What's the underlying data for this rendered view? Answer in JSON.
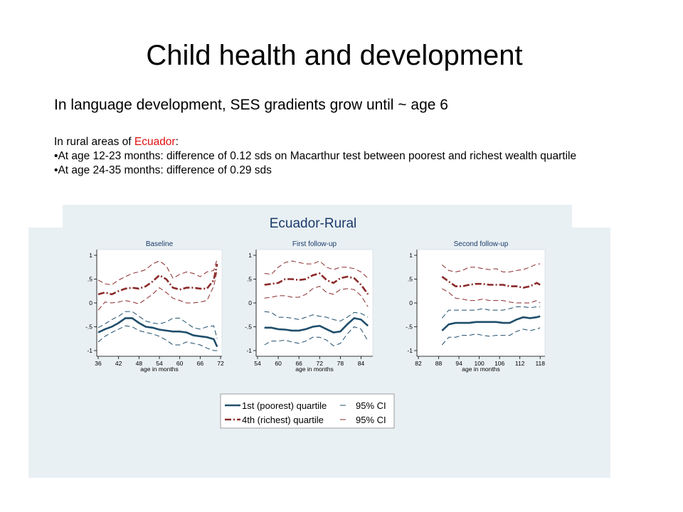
{
  "slide": {
    "title": "Child health and development",
    "subtitle": "In language development, SES gradients grow until ~ age 6",
    "intro_prefix": "In rural areas of ",
    "intro_country": "Ecuador",
    "intro_suffix": ":",
    "bullets": [
      "At age 12-23 months: difference of 0.12 sds on Macarthur test between poorest and richest wealth quartile",
      "At age 24-35 months: difference of 0.29 sds"
    ],
    "bullet_char": "•"
  },
  "colors": {
    "poorest": "#1f4e6b",
    "richest": "#8b2a2a",
    "panel_bg": "#e9f0f3",
    "title_blue": "#1a3a6b"
  },
  "chart_data": {
    "type": "line",
    "title": "Ecuador-Rural",
    "ylim": [
      -1,
      1
    ],
    "y_ticks": [
      1,
      0.5,
      0,
      -0.5,
      -1
    ],
    "y_tick_labels": [
      "1",
      ".5",
      "0",
      "-.5",
      "-1"
    ],
    "legend": {
      "placement": "bottom-center",
      "entries": [
        {
          "label": "1st (poorest) quartile",
          "ci_label": "95% CI",
          "color": "#1f4e6b"
        },
        {
          "label": "4th (richest) quartile",
          "ci_label": "95% CI",
          "color": "#8b2a2a"
        }
      ]
    },
    "panels": [
      {
        "title": "Baseline",
        "xlabel": "age in months",
        "xlim": [
          36,
          72
        ],
        "x_ticks": [
          36,
          42,
          48,
          54,
          60,
          66,
          72
        ],
        "series": [
          {
            "name": "1st (poorest) quartile",
            "role": "estimate",
            "group": "poorest",
            "x": [
              36,
              38,
              40,
              42,
              44,
              46,
              48,
              50,
              52,
              54,
              56,
              58,
              60,
              62,
              64,
              66,
              68,
              70,
              71
            ],
            "y": [
              -0.62,
              -0.55,
              -0.5,
              -0.42,
              -0.32,
              -0.32,
              -0.42,
              -0.5,
              -0.52,
              -0.56,
              -0.58,
              -0.6,
              -0.6,
              -0.62,
              -0.68,
              -0.7,
              -0.72,
              -0.76,
              -0.92
            ]
          },
          {
            "name": "95% CI",
            "role": "ci",
            "group": "poorest",
            "x": [
              36,
              38,
              40,
              42,
              44,
              46,
              48,
              50,
              52,
              54,
              56,
              58,
              60,
              62,
              64,
              66,
              68,
              70,
              71
            ],
            "y": [
              -0.52,
              -0.44,
              -0.35,
              -0.28,
              -0.18,
              -0.18,
              -0.28,
              -0.38,
              -0.42,
              -0.44,
              -0.4,
              -0.32,
              -0.32,
              -0.42,
              -0.52,
              -0.55,
              -0.5,
              -0.48,
              -0.75
            ]
          },
          {
            "name": "95% CI",
            "role": "ci",
            "group": "poorest",
            "x": [
              36,
              38,
              40,
              42,
              44,
              46,
              48,
              50,
              52,
              54,
              56,
              58,
              60,
              62,
              64,
              66,
              68,
              70,
              71
            ],
            "y": [
              -0.82,
              -0.7,
              -0.62,
              -0.55,
              -0.48,
              -0.5,
              -0.58,
              -0.62,
              -0.65,
              -0.7,
              -0.78,
              -0.88,
              -0.88,
              -0.82,
              -0.85,
              -0.88,
              -0.95,
              -1.0,
              -1.0
            ]
          },
          {
            "name": "4th (richest) quartile",
            "role": "estimate",
            "group": "richest",
            "x": [
              36,
              38,
              40,
              42,
              44,
              46,
              48,
              50,
              52,
              54,
              56,
              58,
              60,
              62,
              64,
              66,
              68,
              70,
              71
            ],
            "y": [
              0.18,
              0.22,
              0.18,
              0.25,
              0.3,
              0.32,
              0.3,
              0.35,
              0.45,
              0.58,
              0.5,
              0.32,
              0.28,
              0.32,
              0.32,
              0.3,
              0.3,
              0.48,
              0.82
            ]
          },
          {
            "name": "95% CI",
            "role": "ci",
            "group": "richest",
            "x": [
              36,
              38,
              40,
              42,
              44,
              46,
              48,
              50,
              52,
              54,
              56,
              58,
              60,
              62,
              64,
              66,
              68,
              70,
              71
            ],
            "y": [
              0.48,
              0.4,
              0.38,
              0.48,
              0.55,
              0.62,
              0.65,
              0.7,
              0.82,
              0.88,
              0.78,
              0.52,
              0.6,
              0.65,
              0.62,
              0.55,
              0.65,
              0.68,
              0.92
            ]
          },
          {
            "name": "95% CI",
            "role": "ci",
            "group": "richest",
            "x": [
              36,
              38,
              40,
              42,
              44,
              46,
              48,
              50,
              52,
              54,
              56,
              58,
              60,
              62,
              64,
              66,
              68,
              70,
              71
            ],
            "y": [
              -0.15,
              0.02,
              0.0,
              0.02,
              0.05,
              0.02,
              -0.02,
              0.08,
              0.18,
              0.32,
              0.22,
              0.1,
              0.05,
              0.0,
              0.0,
              0.02,
              0.05,
              0.35,
              0.68
            ]
          }
        ]
      },
      {
        "title": "First follow-up",
        "xlabel": "age in months",
        "xlim": [
          54,
          87
        ],
        "x_ticks": [
          54,
          60,
          66,
          72,
          78,
          84
        ],
        "series": [
          {
            "name": "1st (poorest) quartile",
            "role": "estimate",
            "group": "poorest",
            "x": [
              56,
              58,
              60,
              62,
              64,
              66,
              68,
              70,
              72,
              74,
              76,
              78,
              80,
              82,
              84,
              86
            ],
            "y": [
              -0.52,
              -0.52,
              -0.55,
              -0.56,
              -0.58,
              -0.58,
              -0.55,
              -0.5,
              -0.48,
              -0.55,
              -0.62,
              -0.6,
              -0.45,
              -0.32,
              -0.35,
              -0.48
            ]
          },
          {
            "name": "95% CI",
            "role": "ci",
            "group": "poorest",
            "x": [
              56,
              58,
              60,
              62,
              64,
              66,
              68,
              70,
              72,
              74,
              76,
              78,
              80,
              82,
              84,
              86
            ],
            "y": [
              -0.18,
              -0.2,
              -0.3,
              -0.3,
              -0.32,
              -0.35,
              -0.3,
              -0.25,
              -0.28,
              -0.3,
              -0.35,
              -0.38,
              -0.3,
              -0.2,
              -0.22,
              -0.3
            ]
          },
          {
            "name": "95% CI",
            "role": "ci",
            "group": "poorest",
            "x": [
              56,
              58,
              60,
              62,
              64,
              66,
              68,
              70,
              72,
              74,
              76,
              78,
              80,
              82,
              84,
              86
            ],
            "y": [
              -0.88,
              -0.8,
              -0.8,
              -0.78,
              -0.82,
              -0.85,
              -0.8,
              -0.72,
              -0.72,
              -0.78,
              -0.9,
              -0.85,
              -0.65,
              -0.5,
              -0.55,
              -0.8
            ]
          },
          {
            "name": "4th (richest) quartile",
            "role": "estimate",
            "group": "richest",
            "x": [
              56,
              58,
              60,
              62,
              64,
              66,
              68,
              70,
              72,
              74,
              76,
              78,
              80,
              82,
              84,
              86
            ],
            "y": [
              0.38,
              0.4,
              0.42,
              0.5,
              0.5,
              0.48,
              0.5,
              0.58,
              0.62,
              0.48,
              0.42,
              0.52,
              0.55,
              0.52,
              0.38,
              0.18
            ]
          },
          {
            "name": "95% CI",
            "role": "ci",
            "group": "richest",
            "x": [
              56,
              58,
              60,
              62,
              64,
              66,
              68,
              70,
              72,
              74,
              76,
              78,
              80,
              82,
              84,
              86
            ],
            "y": [
              0.62,
              0.6,
              0.75,
              0.85,
              0.88,
              0.85,
              0.82,
              0.82,
              0.88,
              0.75,
              0.7,
              0.75,
              0.75,
              0.72,
              0.65,
              0.52
            ]
          },
          {
            "name": "95% CI",
            "role": "ci",
            "group": "richest",
            "x": [
              56,
              58,
              60,
              62,
              64,
              66,
              68,
              70,
              72,
              74,
              76,
              78,
              80,
              82,
              84,
              86
            ],
            "y": [
              0.1,
              0.12,
              0.15,
              0.15,
              0.12,
              0.12,
              0.18,
              0.3,
              0.35,
              0.22,
              0.18,
              0.28,
              0.3,
              0.28,
              0.15,
              -0.08
            ]
          }
        ]
      },
      {
        "title": "Second follow-up",
        "xlabel": "age in months",
        "xlim": [
          82,
          119
        ],
        "x_ticks": [
          82,
          88,
          94,
          100,
          106,
          112,
          118
        ],
        "series": [
          {
            "name": "1st (poorest) quartile",
            "role": "estimate",
            "group": "poorest",
            "x": [
              89,
              91,
              93,
              95,
              97,
              99,
              101,
              103,
              105,
              107,
              109,
              111,
              113,
              115,
              117,
              118
            ],
            "y": [
              -0.58,
              -0.45,
              -0.42,
              -0.42,
              -0.42,
              -0.4,
              -0.4,
              -0.4,
              -0.4,
              -0.42,
              -0.42,
              -0.35,
              -0.3,
              -0.32,
              -0.3,
              -0.28
            ]
          },
          {
            "name": "95% CI",
            "role": "ci",
            "group": "poorest",
            "x": [
              89,
              91,
              93,
              95,
              97,
              99,
              101,
              103,
              105,
              107,
              109,
              111,
              113,
              115,
              117,
              118
            ],
            "y": [
              -0.32,
              -0.15,
              -0.15,
              -0.15,
              -0.15,
              -0.15,
              -0.12,
              -0.15,
              -0.15,
              -0.15,
              -0.12,
              -0.08,
              -0.08,
              -0.1,
              -0.08,
              -0.08
            ]
          },
          {
            "name": "95% CI",
            "role": "ci",
            "group": "poorest",
            "x": [
              89,
              91,
              93,
              95,
              97,
              99,
              101,
              103,
              105,
              107,
              109,
              111,
              113,
              115,
              117,
              118
            ],
            "y": [
              -0.88,
              -0.72,
              -0.72,
              -0.68,
              -0.68,
              -0.65,
              -0.68,
              -0.7,
              -0.68,
              -0.68,
              -0.68,
              -0.6,
              -0.55,
              -0.58,
              -0.55,
              -0.52
            ]
          },
          {
            "name": "4th (richest) quartile",
            "role": "estimate",
            "group": "richest",
            "x": [
              89,
              91,
              93,
              95,
              97,
              99,
              101,
              103,
              105,
              107,
              109,
              111,
              113,
              115,
              117,
              118
            ],
            "y": [
              0.55,
              0.45,
              0.35,
              0.35,
              0.38,
              0.4,
              0.4,
              0.38,
              0.38,
              0.38,
              0.35,
              0.35,
              0.32,
              0.35,
              0.42,
              0.38
            ]
          },
          {
            "name": "95% CI",
            "role": "ci",
            "group": "richest",
            "x": [
              89,
              91,
              93,
              95,
              97,
              99,
              101,
              103,
              105,
              107,
              109,
              111,
              113,
              115,
              117,
              118
            ],
            "y": [
              0.8,
              0.68,
              0.65,
              0.68,
              0.75,
              0.75,
              0.72,
              0.7,
              0.72,
              0.65,
              0.65,
              0.68,
              0.7,
              0.75,
              0.82,
              0.82
            ]
          },
          {
            "name": "95% CI",
            "role": "ci",
            "group": "richest",
            "x": [
              89,
              91,
              93,
              95,
              97,
              99,
              101,
              103,
              105,
              107,
              109,
              111,
              113,
              115,
              117,
              118
            ],
            "y": [
              0.3,
              0.22,
              0.1,
              0.08,
              0.05,
              0.05,
              0.08,
              0.05,
              0.05,
              0.05,
              0.02,
              0.0,
              0.0,
              0.0,
              0.05,
              0.0
            ]
          }
        ]
      }
    ]
  }
}
